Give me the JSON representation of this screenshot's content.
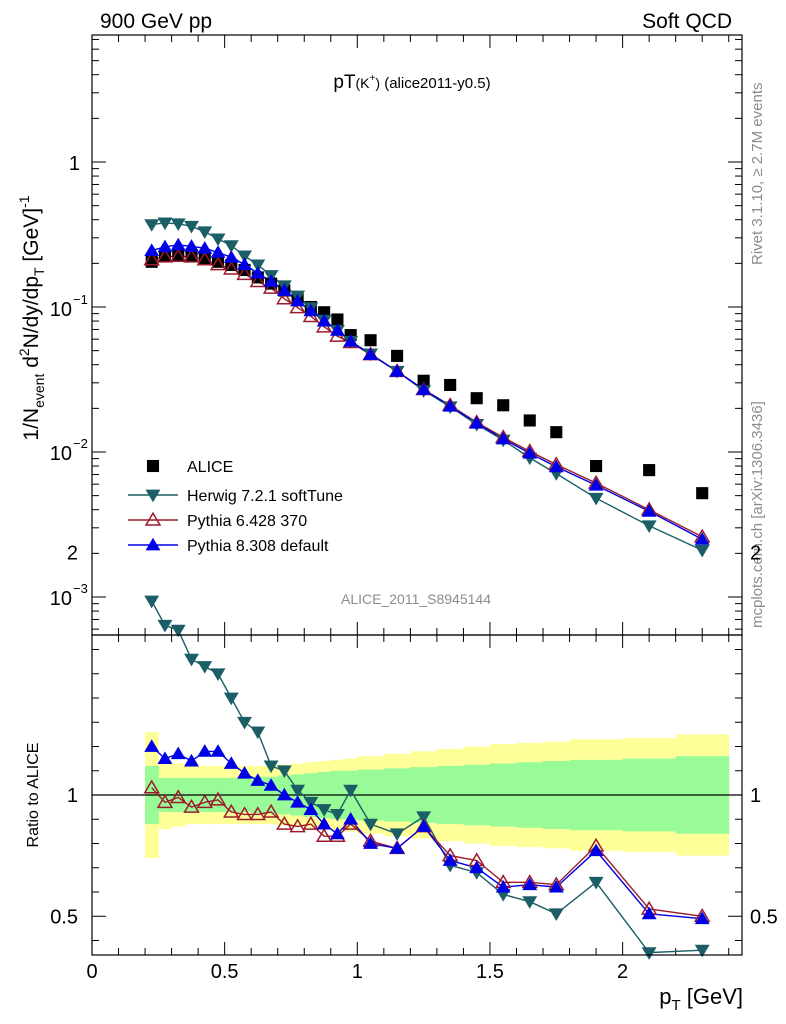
{
  "header": {
    "left": "900 GeV pp",
    "right": "Soft QCD"
  },
  "side": {
    "rivet": "Rivet 3.1.10, ≥ 2.7M events",
    "mcplots": "mcplots.cern.ch [arXiv:1306.3436]"
  },
  "chart_data": [
    {
      "type": "scatter",
      "panel": "main",
      "title_prefix": "pT",
      "title_sub": "(K",
      "title_sup": "+",
      "title_suffix": ")",
      "title_tail": " (alice2011-y0.5)",
      "ylabel": "1/N_event d²N/dy/dp_T [GeV]⁻¹",
      "ylabel_parts": {
        "a": "1/N",
        "b": "event",
        "c": " d",
        "d": "2",
        "e": "N/dy/dp",
        "f": "T",
        "g": " [GeV]",
        "h": "-1"
      },
      "yscale": "log",
      "ylim": [
        0.0006,
        8
      ],
      "xlim": [
        0,
        2.45
      ],
      "ytick_labels": {
        "one": "1",
        "d1": "10",
        "d1e": "−1",
        "d2": "10",
        "d2e": "−2",
        "d3": "10",
        "d3e": "−3"
      },
      "watermark": "ALICE_2011_S8945144",
      "legend_position": "bottom-left",
      "x": [
        0.225,
        0.275,
        0.325,
        0.375,
        0.425,
        0.475,
        0.525,
        0.575,
        0.625,
        0.675,
        0.725,
        0.775,
        0.825,
        0.875,
        0.925,
        0.975,
        1.05,
        1.15,
        1.25,
        1.35,
        1.45,
        1.55,
        1.65,
        1.75,
        1.9,
        2.1,
        2.3
      ],
      "series": [
        {
          "name": "ALICE",
          "color": "#000000",
          "marker": "square",
          "values": [
            0.205,
            0.225,
            0.23,
            0.225,
            0.215,
            0.205,
            0.195,
            0.18,
            0.16,
            0.145,
            0.13,
            0.113,
            0.1,
            0.092,
            0.082,
            0.064,
            0.059,
            0.046,
            0.031,
            0.029,
            0.0235,
            0.021,
            0.0165,
            0.0137,
            0.008,
            0.0075,
            0.0052
          ]
        },
        {
          "name": "Herwig 7.2.1 softTune",
          "color": "#1b5e66",
          "marker": "triangle-down",
          "values": [
            0.37,
            0.38,
            0.375,
            0.36,
            0.33,
            0.295,
            0.265,
            0.225,
            0.195,
            0.165,
            0.14,
            0.119,
            0.099,
            0.081,
            0.069,
            0.058,
            0.0475,
            0.036,
            0.0265,
            0.0205,
            0.0155,
            0.0121,
            0.0091,
            0.0071,
            0.0048,
            0.0031,
            0.0021
          ]
        },
        {
          "name": "Pythia 6.428 370",
          "color": "#9c1c2c",
          "marker": "triangle-up-open",
          "values": [
            0.212,
            0.222,
            0.224,
            0.222,
            0.212,
            0.196,
            0.183,
            0.168,
            0.15,
            0.135,
            0.114,
            0.099,
            0.086,
            0.073,
            0.063,
            0.057,
            0.047,
            0.036,
            0.027,
            0.021,
            0.016,
            0.0126,
            0.0101,
            0.0082,
            0.0061,
            0.004,
            0.0026
          ]
        },
        {
          "name": "Pythia 8.308 default",
          "color": "#0000e6",
          "marker": "triangle-up",
          "values": [
            0.245,
            0.26,
            0.268,
            0.262,
            0.254,
            0.238,
            0.22,
            0.196,
            0.171,
            0.15,
            0.13,
            0.11,
            0.094,
            0.08,
            0.069,
            0.058,
            0.047,
            0.036,
            0.027,
            0.0207,
            0.0158,
            0.0123,
            0.0098,
            0.0079,
            0.0059,
            0.0039,
            0.0025
          ]
        }
      ]
    },
    {
      "type": "line",
      "panel": "ratio",
      "ylabel": "Ratio to ALICE",
      "xlabel": "p_T [GeV]",
      "xlabel_parts": {
        "a": "p",
        "b": "T",
        "c": " [GeV]"
      },
      "ylim": [
        0.34,
        2.3
      ],
      "yticks": [
        0.5,
        1,
        2
      ],
      "ytick_labels": [
        "0.5",
        "1",
        "2"
      ],
      "xticks": [
        0,
        0.5,
        1,
        1.5,
        2
      ],
      "xtick_labels": [
        "0",
        "0.5",
        "1",
        "1.5",
        "2"
      ],
      "reference_line": 1,
      "bands": {
        "edges": [
          0.2,
          0.25,
          0.3,
          0.35,
          0.4,
          0.45,
          0.5,
          0.55,
          0.6,
          0.65,
          0.7,
          0.75,
          0.8,
          0.85,
          0.9,
          0.95,
          1.0,
          1.1,
          1.2,
          1.3,
          1.4,
          1.5,
          1.6,
          1.7,
          1.8,
          2.0,
          2.2,
          2.4
        ],
        "inner_half_width": [
          0.12,
          0.07,
          0.07,
          0.07,
          0.07,
          0.07,
          0.07,
          0.07,
          0.075,
          0.075,
          0.08,
          0.085,
          0.09,
          0.095,
          0.1,
          0.1,
          0.105,
          0.11,
          0.115,
          0.12,
          0.125,
          0.13,
          0.135,
          0.14,
          0.145,
          0.15,
          0.16
        ],
        "outer_half_width": [
          0.26,
          0.14,
          0.13,
          0.12,
          0.12,
          0.12,
          0.12,
          0.12,
          0.12,
          0.12,
          0.125,
          0.13,
          0.135,
          0.14,
          0.145,
          0.15,
          0.16,
          0.17,
          0.18,
          0.19,
          0.2,
          0.21,
          0.215,
          0.22,
          0.23,
          0.235,
          0.25
        ],
        "inner_color": "#98fb98",
        "outer_color": "#ffff99"
      },
      "x": [
        0.225,
        0.275,
        0.325,
        0.375,
        0.425,
        0.475,
        0.525,
        0.575,
        0.625,
        0.675,
        0.725,
        0.775,
        0.825,
        0.875,
        0.925,
        0.975,
        1.05,
        1.15,
        1.25,
        1.35,
        1.45,
        1.55,
        1.65,
        1.75,
        1.9,
        2.1,
        2.3
      ],
      "series": [
        {
          "name": "Herwig 7.2.1 softTune",
          "color": "#1b5e66",
          "marker": "triangle-down",
          "values": [
            1.8,
            1.7,
            1.68,
            1.56,
            1.53,
            1.5,
            1.4,
            1.3,
            1.26,
            1.12,
            1.1,
            1.02,
            0.97,
            0.94,
            0.92,
            1.02,
            0.88,
            0.84,
            0.91,
            0.71,
            0.68,
            0.59,
            0.56,
            0.51,
            0.64,
            0.35,
            0.36
          ]
        },
        {
          "name": "Pythia 6.428 370",
          "color": "#9c1c2c",
          "marker": "triangle-up-open",
          "values": [
            1.03,
            0.97,
            0.99,
            0.95,
            0.97,
            0.98,
            0.93,
            0.92,
            0.92,
            0.93,
            0.88,
            0.87,
            0.88,
            0.83,
            0.83,
            0.88,
            0.81,
            0.78,
            0.87,
            0.75,
            0.73,
            0.64,
            0.64,
            0.63,
            0.79,
            0.53,
            0.5
          ]
        },
        {
          "name": "Pythia 8.308 default",
          "color": "#0000e6",
          "marker": "triangle-up",
          "values": [
            1.2,
            1.15,
            1.17,
            1.14,
            1.18,
            1.18,
            1.13,
            1.09,
            1.06,
            1.04,
            1.0,
            0.97,
            0.94,
            0.88,
            0.84,
            0.9,
            0.8,
            0.78,
            0.87,
            0.73,
            0.7,
            0.62,
            0.63,
            0.62,
            0.77,
            0.51,
            0.49
          ]
        }
      ]
    }
  ]
}
